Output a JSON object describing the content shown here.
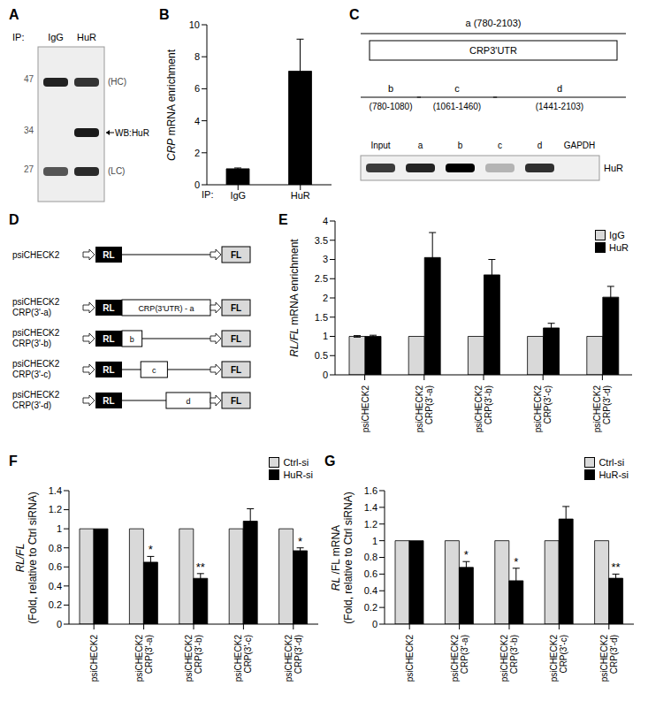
{
  "panels": {
    "A": {
      "label": "A",
      "ip_label": "IP:",
      "lanes": [
        "IgG",
        "HuR"
      ],
      "markers": [
        47,
        34,
        27
      ],
      "band_labels": [
        "(HC)",
        "WB:HuR",
        "(LC)"
      ]
    },
    "C": {
      "label": "C",
      "utr_label": "CRP3'UTR",
      "segments": [
        {
          "name": "a",
          "start": 780,
          "end": 2103,
          "range_label": "(780-2103)"
        },
        {
          "name": "b",
          "start": 780,
          "end": 1080,
          "range_label": "(780-1080)"
        },
        {
          "name": "c",
          "start": 1061,
          "end": 1460,
          "range_label": "(1061-1460)"
        },
        {
          "name": "d",
          "start": 1441,
          "end": 2103,
          "range_label": "(1441-2103)"
        }
      ],
      "blot_lanes": [
        "Input",
        "a",
        "b",
        "c",
        "d",
        "GAPDH"
      ],
      "blot_label": "HuR"
    },
    "D": {
      "label": "D",
      "rl": "RL",
      "fl": "FL",
      "constructs": [
        {
          "name": "psiCHECK2"
        },
        {
          "name": "psiCHECK2 CRP(3'-a)",
          "segment": "a",
          "insert_label": "CRP(3'UTR) - a"
        },
        {
          "name": "psiCHECK2 CRP(3'-b)",
          "segment": "b"
        },
        {
          "name": "psiCHECK2 CRP(3'-c)",
          "segment": "c"
        },
        {
          "name": "psiCHECK2 CRP(3'-d)",
          "segment": "d"
        }
      ]
    }
  },
  "chart_data": [
    {
      "label": "B",
      "type": "bar",
      "categories": [
        "IgG",
        "HuR"
      ],
      "values": [
        1,
        7.1
      ],
      "errors": [
        0.05,
        2.0
      ],
      "color": "#000000",
      "xlabel": "IP:",
      "ylabel": [
        "CRP mRNA enrichment"
      ],
      "ylim": [
        0,
        10
      ],
      "yticks": [
        0,
        2,
        4,
        6,
        8,
        10
      ]
    },
    {
      "label": "E",
      "type": "bar",
      "categories": [
        "psiCHECK2",
        "psiCHECK2 CRP(3'-a)",
        "psiCHECK2 CRP(3'-b)",
        "psiCHECK2 CRP(3'-c)",
        "psiCHECK2 CRP(3'-d)"
      ],
      "series": [
        {
          "name": "IgG",
          "color": "#d9d9d9",
          "values": [
            1,
            1,
            1,
            1,
            1
          ],
          "errors": [
            0.02,
            0,
            0,
            0,
            0
          ]
        },
        {
          "name": "HuR",
          "color": "#000000",
          "values": [
            1,
            3.05,
            2.6,
            1.22,
            2.02
          ],
          "errors": [
            0.03,
            0.65,
            0.4,
            0.12,
            0.28
          ]
        }
      ],
      "ylabel": [
        "RL/FL mRNA enrichment"
      ],
      "ylim": [
        0,
        4
      ],
      "yticks": [
        0,
        0.5,
        1,
        1.5,
        2,
        2.5,
        3,
        3.5,
        4
      ],
      "legend": "upper right"
    },
    {
      "label": "F",
      "type": "bar",
      "categories": [
        "psiCHECK2",
        "psiCHECK2 CRP(3'-a)",
        "psiCHECK2 CRP(3'-b)",
        "psiCHECK2 CRP(3'-c)",
        "psiCHECK2 CRP(3'-d)"
      ],
      "series": [
        {
          "name": "Ctrl-si",
          "color": "#d9d9d9",
          "values": [
            1,
            1,
            1,
            1,
            1
          ],
          "errors": [
            0,
            0,
            0,
            0,
            0
          ]
        },
        {
          "name": "HuR-si",
          "color": "#000000",
          "values": [
            1,
            0.65,
            0.48,
            1.08,
            0.77
          ],
          "errors": [
            0,
            0.06,
            0.05,
            0.13,
            0.03
          ],
          "significance": [
            null,
            "*",
            "**",
            null,
            "*"
          ]
        }
      ],
      "ylabel": [
        "RL/FL",
        "(Fold, relative to Ctrl siRNA)"
      ],
      "ylim": [
        0,
        1.4
      ],
      "yticks": [
        0,
        0.2,
        0.4,
        0.6,
        0.8,
        1,
        1.2,
        1.4
      ],
      "legend": "upper right"
    },
    {
      "label": "G",
      "type": "bar",
      "categories": [
        "psiCHECK2",
        "psiCHECK2 CRP(3'-a)",
        "psiCHECK2 CRP(3'-b)",
        "psiCHECK2 CRP(3'-c)",
        "psiCHECK2 CRP(3'-d)"
      ],
      "series": [
        {
          "name": "Ctrl-si",
          "color": "#d9d9d9",
          "values": [
            1,
            1,
            1,
            1,
            1
          ],
          "errors": [
            0,
            0,
            0,
            0,
            0
          ]
        },
        {
          "name": "HuR-si",
          "color": "#000000",
          "values": [
            1,
            0.68,
            0.52,
            1.26,
            0.55
          ],
          "errors": [
            0,
            0.07,
            0.15,
            0.15,
            0.05
          ],
          "significance": [
            null,
            "*",
            "*",
            null,
            "**"
          ]
        }
      ],
      "ylabel": [
        "RL /FL mRNA",
        "(Fold, relative to Ctrl siRNA)"
      ],
      "ylim": [
        0,
        1.6
      ],
      "yticks": [
        0,
        0.2,
        0.4,
        0.6,
        0.8,
        1,
        1.2,
        1.4,
        1.6
      ],
      "legend": "upper right"
    }
  ]
}
